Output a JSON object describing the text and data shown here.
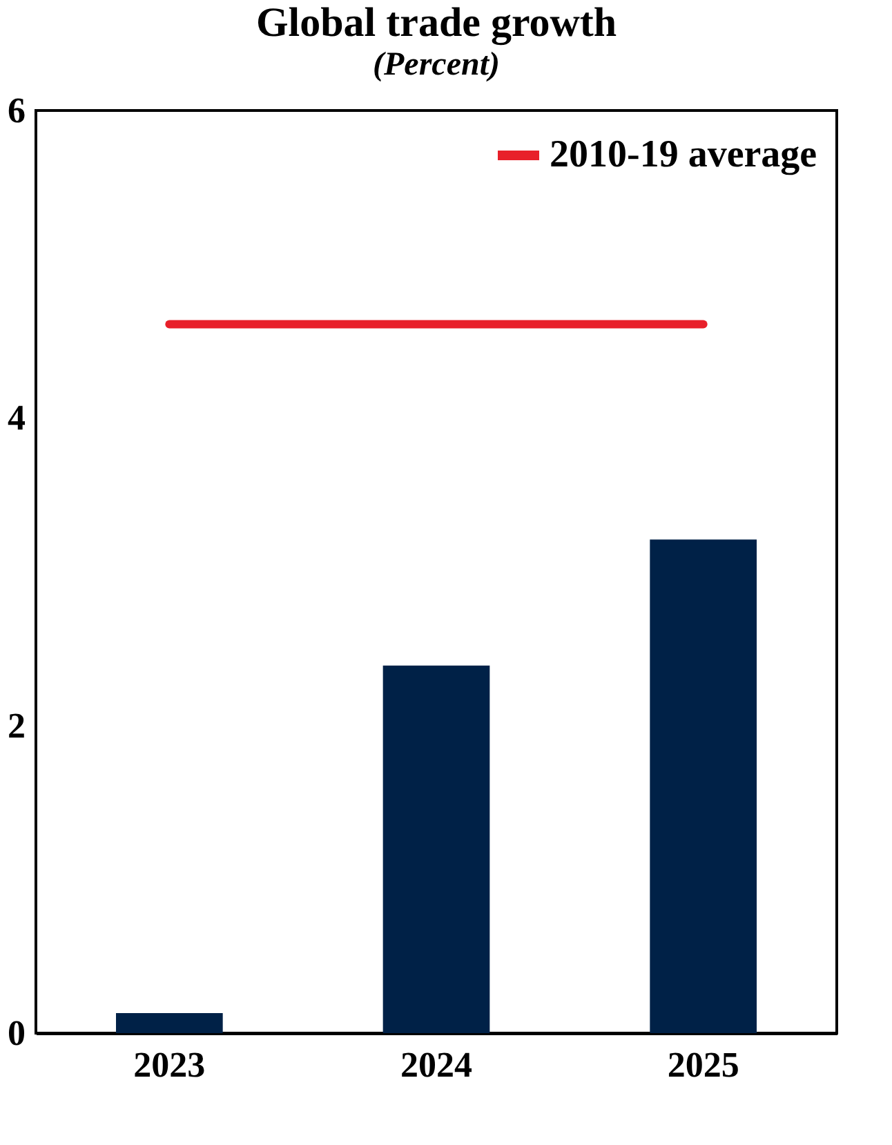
{
  "chart_data": {
    "type": "bar",
    "title": "Global trade growth",
    "subtitle": "(Percent)",
    "categories": [
      "2023",
      "2024",
      "2025"
    ],
    "series": [
      {
        "color": "#002147",
        "values": [
          0.13,
          2.39,
          3.21
        ]
      },
      {
        "type": "line",
        "name": "2010-19 average",
        "color": "#e8202a",
        "values": [
          4.61,
          4.61,
          4.61
        ]
      }
    ],
    "ylim": [
      0,
      6
    ],
    "yticks": [
      0,
      2,
      4,
      6
    ],
    "grid": false,
    "legend": "top right"
  }
}
